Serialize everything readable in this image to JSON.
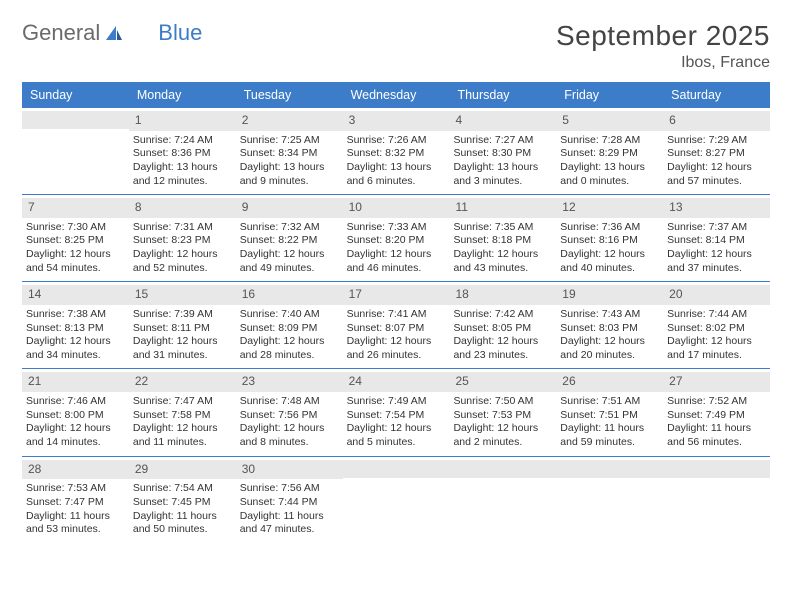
{
  "logo": {
    "word1": "General",
    "word2": "Blue"
  },
  "title": "September 2025",
  "location": "Ibos, France",
  "day_headers": [
    "Sunday",
    "Monday",
    "Tuesday",
    "Wednesday",
    "Thursday",
    "Friday",
    "Saturday"
  ],
  "colors": {
    "header_bg": "#3d7cc9",
    "header_text": "#ffffff",
    "daynum_bg": "#e8e8e8",
    "text": "#333333",
    "rule": "#3d7cc9"
  },
  "weeks": [
    [
      {
        "n": "",
        "sr": "",
        "ss": "",
        "dl": ""
      },
      {
        "n": "1",
        "sr": "Sunrise: 7:24 AM",
        "ss": "Sunset: 8:36 PM",
        "dl": "Daylight: 13 hours and 12 minutes."
      },
      {
        "n": "2",
        "sr": "Sunrise: 7:25 AM",
        "ss": "Sunset: 8:34 PM",
        "dl": "Daylight: 13 hours and 9 minutes."
      },
      {
        "n": "3",
        "sr": "Sunrise: 7:26 AM",
        "ss": "Sunset: 8:32 PM",
        "dl": "Daylight: 13 hours and 6 minutes."
      },
      {
        "n": "4",
        "sr": "Sunrise: 7:27 AM",
        "ss": "Sunset: 8:30 PM",
        "dl": "Daylight: 13 hours and 3 minutes."
      },
      {
        "n": "5",
        "sr": "Sunrise: 7:28 AM",
        "ss": "Sunset: 8:29 PM",
        "dl": "Daylight: 13 hours and 0 minutes."
      },
      {
        "n": "6",
        "sr": "Sunrise: 7:29 AM",
        "ss": "Sunset: 8:27 PM",
        "dl": "Daylight: 12 hours and 57 minutes."
      }
    ],
    [
      {
        "n": "7",
        "sr": "Sunrise: 7:30 AM",
        "ss": "Sunset: 8:25 PM",
        "dl": "Daylight: 12 hours and 54 minutes."
      },
      {
        "n": "8",
        "sr": "Sunrise: 7:31 AM",
        "ss": "Sunset: 8:23 PM",
        "dl": "Daylight: 12 hours and 52 minutes."
      },
      {
        "n": "9",
        "sr": "Sunrise: 7:32 AM",
        "ss": "Sunset: 8:22 PM",
        "dl": "Daylight: 12 hours and 49 minutes."
      },
      {
        "n": "10",
        "sr": "Sunrise: 7:33 AM",
        "ss": "Sunset: 8:20 PM",
        "dl": "Daylight: 12 hours and 46 minutes."
      },
      {
        "n": "11",
        "sr": "Sunrise: 7:35 AM",
        "ss": "Sunset: 8:18 PM",
        "dl": "Daylight: 12 hours and 43 minutes."
      },
      {
        "n": "12",
        "sr": "Sunrise: 7:36 AM",
        "ss": "Sunset: 8:16 PM",
        "dl": "Daylight: 12 hours and 40 minutes."
      },
      {
        "n": "13",
        "sr": "Sunrise: 7:37 AM",
        "ss": "Sunset: 8:14 PM",
        "dl": "Daylight: 12 hours and 37 minutes."
      }
    ],
    [
      {
        "n": "14",
        "sr": "Sunrise: 7:38 AM",
        "ss": "Sunset: 8:13 PM",
        "dl": "Daylight: 12 hours and 34 minutes."
      },
      {
        "n": "15",
        "sr": "Sunrise: 7:39 AM",
        "ss": "Sunset: 8:11 PM",
        "dl": "Daylight: 12 hours and 31 minutes."
      },
      {
        "n": "16",
        "sr": "Sunrise: 7:40 AM",
        "ss": "Sunset: 8:09 PM",
        "dl": "Daylight: 12 hours and 28 minutes."
      },
      {
        "n": "17",
        "sr": "Sunrise: 7:41 AM",
        "ss": "Sunset: 8:07 PM",
        "dl": "Daylight: 12 hours and 26 minutes."
      },
      {
        "n": "18",
        "sr": "Sunrise: 7:42 AM",
        "ss": "Sunset: 8:05 PM",
        "dl": "Daylight: 12 hours and 23 minutes."
      },
      {
        "n": "19",
        "sr": "Sunrise: 7:43 AM",
        "ss": "Sunset: 8:03 PM",
        "dl": "Daylight: 12 hours and 20 minutes."
      },
      {
        "n": "20",
        "sr": "Sunrise: 7:44 AM",
        "ss": "Sunset: 8:02 PM",
        "dl": "Daylight: 12 hours and 17 minutes."
      }
    ],
    [
      {
        "n": "21",
        "sr": "Sunrise: 7:46 AM",
        "ss": "Sunset: 8:00 PM",
        "dl": "Daylight: 12 hours and 14 minutes."
      },
      {
        "n": "22",
        "sr": "Sunrise: 7:47 AM",
        "ss": "Sunset: 7:58 PM",
        "dl": "Daylight: 12 hours and 11 minutes."
      },
      {
        "n": "23",
        "sr": "Sunrise: 7:48 AM",
        "ss": "Sunset: 7:56 PM",
        "dl": "Daylight: 12 hours and 8 minutes."
      },
      {
        "n": "24",
        "sr": "Sunrise: 7:49 AM",
        "ss": "Sunset: 7:54 PM",
        "dl": "Daylight: 12 hours and 5 minutes."
      },
      {
        "n": "25",
        "sr": "Sunrise: 7:50 AM",
        "ss": "Sunset: 7:53 PM",
        "dl": "Daylight: 12 hours and 2 minutes."
      },
      {
        "n": "26",
        "sr": "Sunrise: 7:51 AM",
        "ss": "Sunset: 7:51 PM",
        "dl": "Daylight: 11 hours and 59 minutes."
      },
      {
        "n": "27",
        "sr": "Sunrise: 7:52 AM",
        "ss": "Sunset: 7:49 PM",
        "dl": "Daylight: 11 hours and 56 minutes."
      }
    ],
    [
      {
        "n": "28",
        "sr": "Sunrise: 7:53 AM",
        "ss": "Sunset: 7:47 PM",
        "dl": "Daylight: 11 hours and 53 minutes."
      },
      {
        "n": "29",
        "sr": "Sunrise: 7:54 AM",
        "ss": "Sunset: 7:45 PM",
        "dl": "Daylight: 11 hours and 50 minutes."
      },
      {
        "n": "30",
        "sr": "Sunrise: 7:56 AM",
        "ss": "Sunset: 7:44 PM",
        "dl": "Daylight: 11 hours and 47 minutes."
      },
      {
        "n": "",
        "sr": "",
        "ss": "",
        "dl": ""
      },
      {
        "n": "",
        "sr": "",
        "ss": "",
        "dl": ""
      },
      {
        "n": "",
        "sr": "",
        "ss": "",
        "dl": ""
      },
      {
        "n": "",
        "sr": "",
        "ss": "",
        "dl": ""
      }
    ]
  ]
}
